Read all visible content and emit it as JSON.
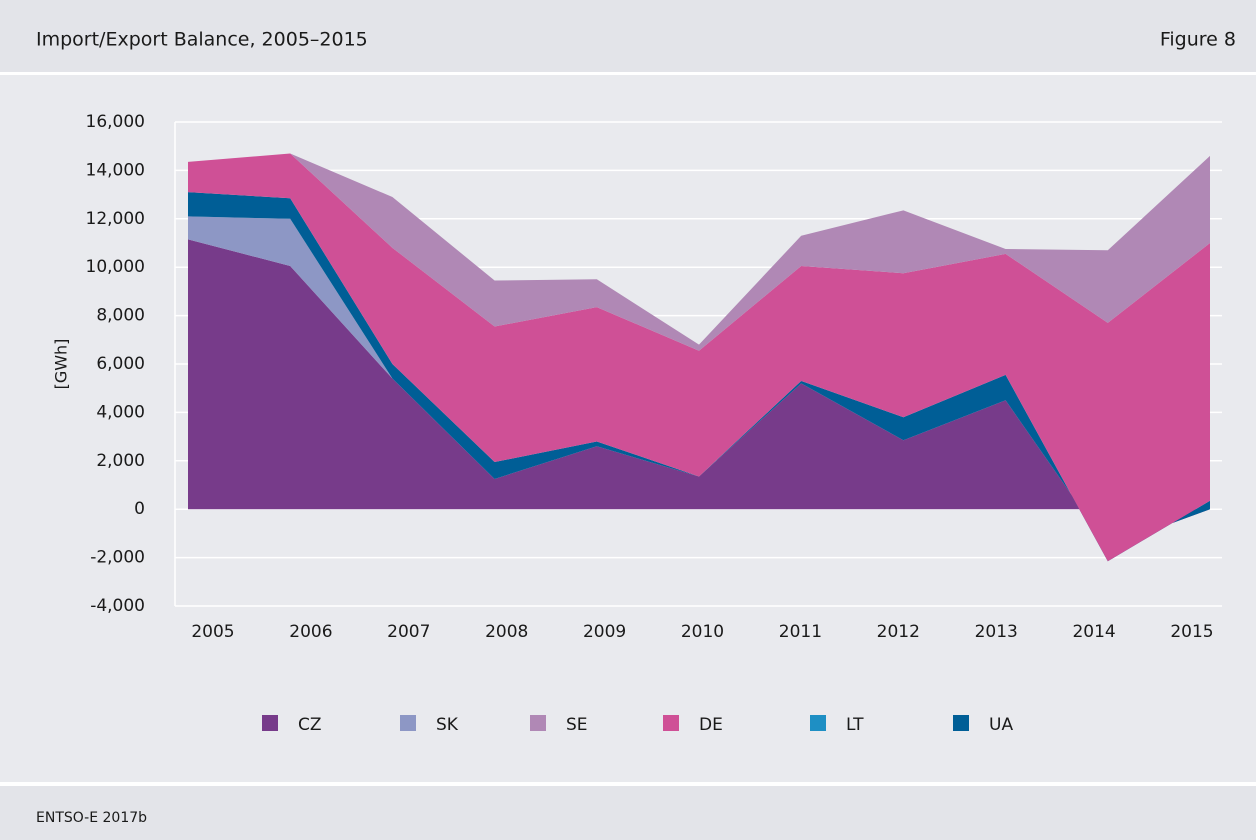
{
  "chart_data": {
    "type": "stacked_area",
    "title": "Import/Export Balance, 2005–2015",
    "figure_label": "Figure 8",
    "source": "ENTSO-E 2017b",
    "y_label": "[GWh]",
    "categories": [
      "2005",
      "2006",
      "2007",
      "2008",
      "2009",
      "2010",
      "2011",
      "2012",
      "2013",
      "2014",
      "2015"
    ],
    "series": [
      {
        "name": "CZ",
        "color": "#773b8a",
        "values": [
          11150,
          10050,
          5400,
          1250,
          2600,
          1350,
          5200,
          2850,
          4500,
          -1550,
          0
        ]
      },
      {
        "name": "SK",
        "color": "#8d97c5",
        "values": [
          950,
          1950,
          0,
          0,
          0,
          0,
          0,
          0,
          0,
          0,
          0
        ]
      },
      {
        "name": "SE",
        "color": "#b088b5",
        "values": [
          0,
          0,
          2100,
          1900,
          1150,
          250,
          1250,
          2600,
          200,
          3000,
          3600
        ]
      },
      {
        "name": "DE",
        "color": "#cf5096",
        "values": [
          1250,
          1850,
          4800,
          5600,
          5550,
          5200,
          4750,
          5950,
          5000,
          9850,
          10650
        ]
      },
      {
        "name": "LT",
        "color": "#1e8fc4",
        "values": [
          0,
          0,
          0,
          0,
          0,
          0,
          0,
          0,
          0,
          0,
          0
        ]
      },
      {
        "name": "UA",
        "color": "#005e96",
        "values": [
          1000,
          850,
          600,
          700,
          200,
          0,
          100,
          950,
          1050,
          -600,
          350
        ]
      }
    ],
    "ylim": [
      -4000,
      16000
    ],
    "yticks": [
      {
        "value": -4000,
        "label": "-4,000"
      },
      {
        "value": -2000,
        "label": "-2,000"
      },
      0,
      {
        "value": 2000,
        "label": "2,000"
      },
      {
        "value": 4000,
        "label": "4,000"
      },
      {
        "value": 6000,
        "label": "6,000"
      },
      {
        "value": 8000,
        "label": "8,000"
      },
      {
        "value": 10000,
        "label": "10,000"
      },
      {
        "value": 12000,
        "label": "12,000"
      },
      {
        "value": 14000,
        "label": "14,000"
      },
      {
        "value": 16000,
        "label": "16,000"
      }
    ],
    "grid": true
  }
}
